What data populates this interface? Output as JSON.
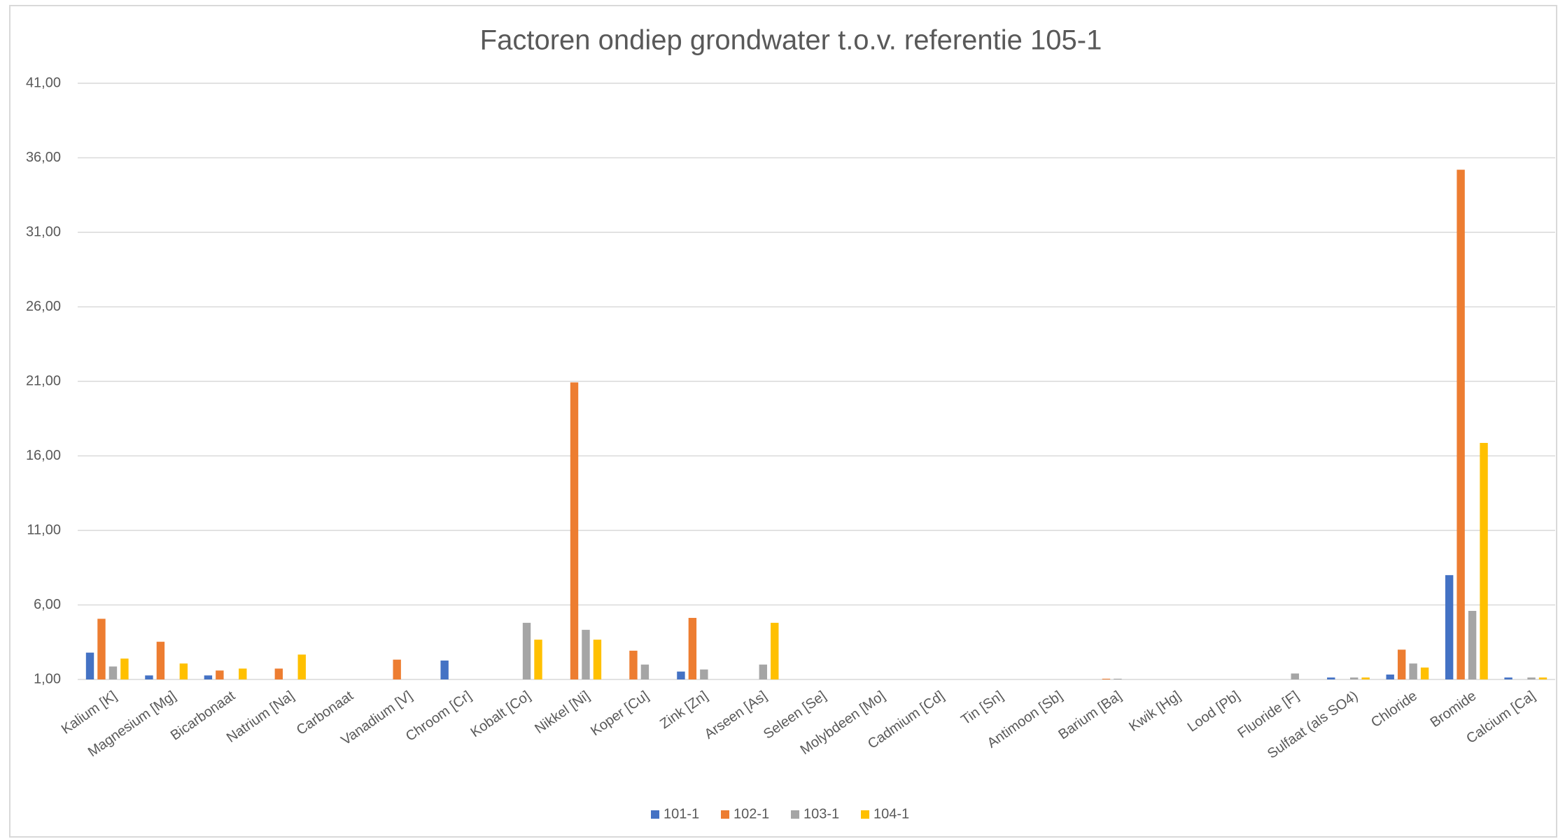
{
  "chart_data": {
    "type": "bar",
    "title": "Factoren ondiep grondwater t.o.v. referentie 105-1",
    "categories": [
      "Kalium [K]",
      "Magnesium [Mg]",
      "Bicarbonaat",
      "Natrium [Na]",
      "Carbonaat",
      "Vanadium [V]",
      "Chroom [Cr]",
      "Kobalt [Co]",
      "Nikkel [Ni]",
      "Koper [Cu]",
      "Zink [Zn]",
      "Arseen [As]",
      "Seleen [Se]",
      "Molybdeen [Mo]",
      "Cadmium [Cd]",
      "Tin [Sn]",
      "Antimoon [Sb]",
      "Barium [Ba]",
      "Kwik [Hg]",
      "Lood [Pb]",
      "Fluoride [F]",
      "Sulfaat (als SO4)",
      "Chloride",
      "Bromide",
      "Calcium [Ca]"
    ],
    "series": [
      {
        "name": "101-1",
        "color": "#4472c4",
        "values": [
          2.8,
          1.27,
          1.27,
          1,
          1,
          1,
          2.27,
          1,
          1,
          1,
          1.53,
          1,
          1,
          1,
          1,
          1,
          1,
          1,
          1,
          1,
          1,
          1.13,
          1.33,
          8.0,
          1.13
        ]
      },
      {
        "name": "102-1",
        "color": "#ed7d31",
        "values": [
          5.07,
          3.53,
          1.6,
          1.73,
          1,
          2.33,
          1,
          1,
          20.93,
          2.93,
          5.13,
          1,
          1,
          1,
          1,
          1,
          1,
          1.05,
          1,
          1,
          1,
          1,
          3.0,
          35.2,
          1
        ]
      },
      {
        "name": "103-1",
        "color": "#a5a5a5",
        "values": [
          1.87,
          1,
          1,
          1,
          1,
          1,
          1,
          4.8,
          4.33,
          2.0,
          1.67,
          2.0,
          1,
          1,
          1,
          1,
          1,
          1.05,
          1,
          1,
          1.4,
          1.13,
          2.07,
          5.6,
          1.13
        ]
      },
      {
        "name": "104-1",
        "color": "#ffc000",
        "values": [
          2.4,
          2.07,
          1.73,
          2.67,
          1,
          1,
          1,
          3.67,
          3.67,
          1,
          1,
          4.8,
          1,
          1,
          1,
          1,
          1,
          1,
          1,
          1,
          1,
          1.13,
          1.8,
          16.87,
          1.13
        ]
      }
    ],
    "ylim": [
      1,
      41
    ],
    "yticks": [
      {
        "value": 1,
        "label": "1,00"
      },
      {
        "value": 6,
        "label": "6,00"
      },
      {
        "value": 11,
        "label": "11,00"
      },
      {
        "value": 16,
        "label": "16,00"
      },
      {
        "value": 21,
        "label": "21,00"
      },
      {
        "value": 26,
        "label": "26,00"
      },
      {
        "value": 31,
        "label": "31,00"
      },
      {
        "value": 36,
        "label": "36,00"
      },
      {
        "value": 41,
        "label": "41,00"
      }
    ],
    "grid": true,
    "legend": "bottom"
  }
}
